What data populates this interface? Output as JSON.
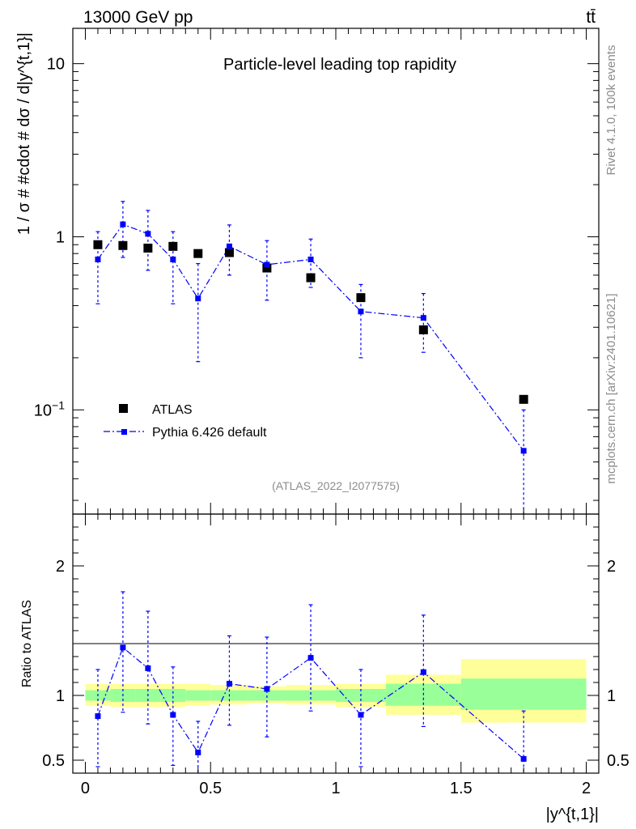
{
  "header": {
    "energy_label": "13000 GeV pp",
    "process_label": "tt̄"
  },
  "side_labels": {
    "rivet": "Rivet 4.1.0,  100k events",
    "source": "mcplots.cern.ch [arXiv:2401.10621]"
  },
  "chart_data": [
    {
      "type": "scatter",
      "title": "Particle-level leading top rapidity",
      "watermark": "(ATLAS_2022_I2077575)",
      "ylabel": "1 / σ # #cdot # dσ / d|y^{t,1}|",
      "xlim": [
        -0.05,
        2.05
      ],
      "ylim": [
        0.025,
        16
      ],
      "yscale": "log",
      "yticks": [
        {
          "v": 10,
          "label": "10"
        },
        {
          "v": 1,
          "label": "1"
        },
        {
          "v": 0.1,
          "label": "10^-1"
        }
      ],
      "legend_position": "lower-left",
      "series": [
        {
          "name": "ATLAS",
          "style": "data",
          "color": "#000000",
          "x": [
            0.05,
            0.15,
            0.25,
            0.35,
            0.45,
            0.575,
            0.725,
            0.9,
            1.1,
            1.35,
            1.75
          ],
          "y": [
            0.9,
            0.89,
            0.86,
            0.88,
            0.8,
            0.81,
            0.66,
            0.58,
            0.445,
            0.29,
            0.115
          ]
        },
        {
          "name": "Pythia 6.426 default",
          "style": "mc",
          "color": "#0000ff",
          "x": [
            0.05,
            0.15,
            0.25,
            0.35,
            0.45,
            0.575,
            0.725,
            0.9,
            1.1,
            1.35,
            1.75
          ],
          "y": [
            0.74,
            1.18,
            1.04,
            0.74,
            0.44,
            0.88,
            0.69,
            0.74,
            0.37,
            0.34,
            0.058
          ],
          "yerr_low": [
            0.41,
            0.76,
            0.64,
            0.41,
            0.19,
            0.6,
            0.43,
            0.51,
            0.2,
            0.215,
            0.025
          ],
          "yerr_high": [
            1.07,
            1.6,
            1.42,
            1.07,
            0.7,
            1.17,
            0.95,
            0.97,
            0.53,
            0.47,
            0.1
          ]
        }
      ]
    },
    {
      "type": "scatter",
      "ylabel": "Ratio to ATLAS",
      "xlabel": "|y^{t,1}|",
      "xlim": [
        -0.05,
        2.05
      ],
      "ylim": [
        0.4,
        2.4
      ],
      "xticks": [
        0,
        0.5,
        1,
        1.5,
        2
      ],
      "xticklabels": [
        "0",
        "0.5",
        "1",
        "1.5",
        "2"
      ],
      "yticks": [
        0.5,
        1,
        2
      ],
      "yticklabels": [
        "0.5",
        "1",
        "2"
      ],
      "bands": {
        "bin_edges": [
          0,
          0.1,
          0.2,
          0.3,
          0.4,
          0.5,
          0.65,
          0.8,
          1.0,
          1.2,
          1.5,
          2.0
        ],
        "stat_syst": [
          [
            0.92,
            1.09
          ],
          [
            0.91,
            1.09
          ],
          [
            0.91,
            1.09
          ],
          [
            0.91,
            1.09
          ],
          [
            0.92,
            1.09
          ],
          [
            0.93,
            1.08
          ],
          [
            0.94,
            1.07
          ],
          [
            0.93,
            1.08
          ],
          [
            0.91,
            1.09
          ],
          [
            0.85,
            1.16
          ],
          [
            0.79,
            1.28
          ]
        ],
        "stat": [
          [
            0.96,
            1.04
          ],
          [
            0.95,
            1.05
          ],
          [
            0.95,
            1.05
          ],
          [
            0.95,
            1.05
          ],
          [
            0.96,
            1.04
          ],
          [
            0.96,
            1.04
          ],
          [
            0.96,
            1.04
          ],
          [
            0.96,
            1.04
          ],
          [
            0.95,
            1.05
          ],
          [
            0.92,
            1.09
          ],
          [
            0.89,
            1.13
          ]
        ],
        "yellow": "#ffff99",
        "green": "#99ff99"
      },
      "series": [
        {
          "name": "Pythia 6.426 default",
          "color": "#0000ff",
          "x": [
            0.05,
            0.15,
            0.25,
            0.35,
            0.45,
            0.575,
            0.725,
            0.9,
            1.1,
            1.35,
            1.75
          ],
          "y": [
            0.84,
            1.37,
            1.21,
            0.85,
            0.56,
            1.09,
            1.05,
            1.29,
            0.85,
            1.18,
            0.51
          ],
          "yerr_low": [
            0.45,
            0.87,
            0.78,
            0.46,
            0.39,
            0.77,
            0.68,
            0.88,
            0.45,
            0.76,
            0.38
          ],
          "yerr_high": [
            1.2,
            1.8,
            1.65,
            1.22,
            0.8,
            1.46,
            1.45,
            1.7,
            1.2,
            1.62,
            0.88
          ]
        }
      ]
    }
  ]
}
